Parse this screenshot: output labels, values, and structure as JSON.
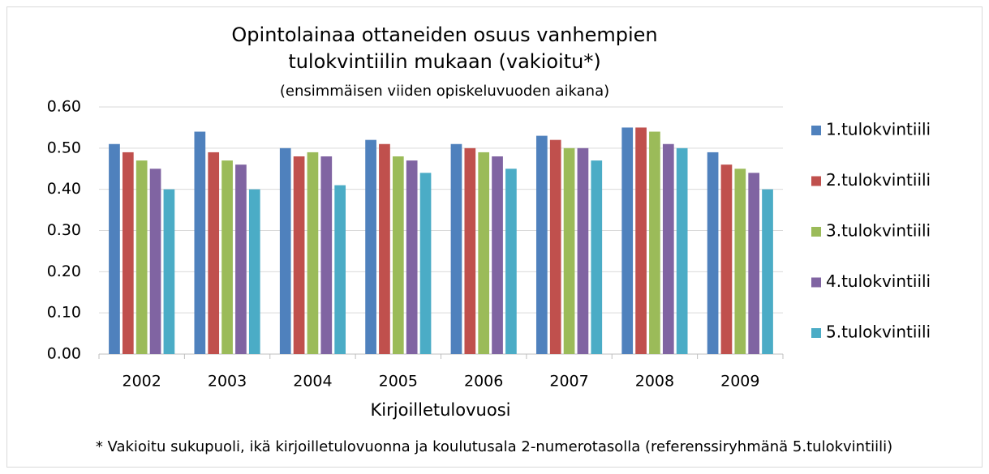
{
  "chart_data": {
    "type": "bar",
    "title": [
      "Opintolainaa ottaneiden osuus vanhempien",
      "tulokvintiilin mukaan (vakioitu*)"
    ],
    "subtitle": "(ensimmäisen viiden opiskeluvuoden aikana)",
    "x_label": "Kirjoilletulovuosi",
    "annotation": "* Vakioitu sukupuoli, ikä kirjoilletulovuonna ja koulutusala 2-numerotasolla (referenssiryhmänä 5.tulokvintiili)",
    "categories": [
      "2002",
      "2003",
      "2004",
      "2005",
      "2006",
      "2007",
      "2008",
      "2009"
    ],
    "series": [
      {
        "name": "1.tulokvintiili",
        "color": "#4f81bd",
        "values": [
          0.51,
          0.54,
          0.5,
          0.52,
          0.51,
          0.53,
          0.55,
          0.49
        ]
      },
      {
        "name": "2.tulokvintiili",
        "color": "#c0504d",
        "values": [
          0.49,
          0.49,
          0.48,
          0.51,
          0.5,
          0.52,
          0.55,
          0.46
        ]
      },
      {
        "name": "3.tulokvintiili",
        "color": "#9bbb59",
        "values": [
          0.47,
          0.47,
          0.49,
          0.48,
          0.49,
          0.5,
          0.54,
          0.45
        ]
      },
      {
        "name": "4.tulokvintiili",
        "color": "#8064a2",
        "values": [
          0.45,
          0.46,
          0.48,
          0.47,
          0.48,
          0.5,
          0.51,
          0.44
        ]
      },
      {
        "name": "5.tulokvintiili",
        "color": "#4bacc6",
        "values": [
          0.4,
          0.4,
          0.41,
          0.44,
          0.45,
          0.47,
          0.5,
          0.4
        ]
      }
    ],
    "ylim": [
      0,
      0.6
    ],
    "yticks": [
      {
        "value": 0,
        "label": "0.00"
      },
      {
        "value": 0.1,
        "label": "0.10"
      },
      {
        "value": 0.2,
        "label": "0.20"
      },
      {
        "value": 0.3,
        "label": "0.30"
      },
      {
        "value": 0.4,
        "label": "0.40"
      },
      {
        "value": 0.5,
        "label": "0.50"
      },
      {
        "value": 0.6,
        "label": "0.60"
      }
    ],
    "grid": true,
    "legend": "right"
  }
}
